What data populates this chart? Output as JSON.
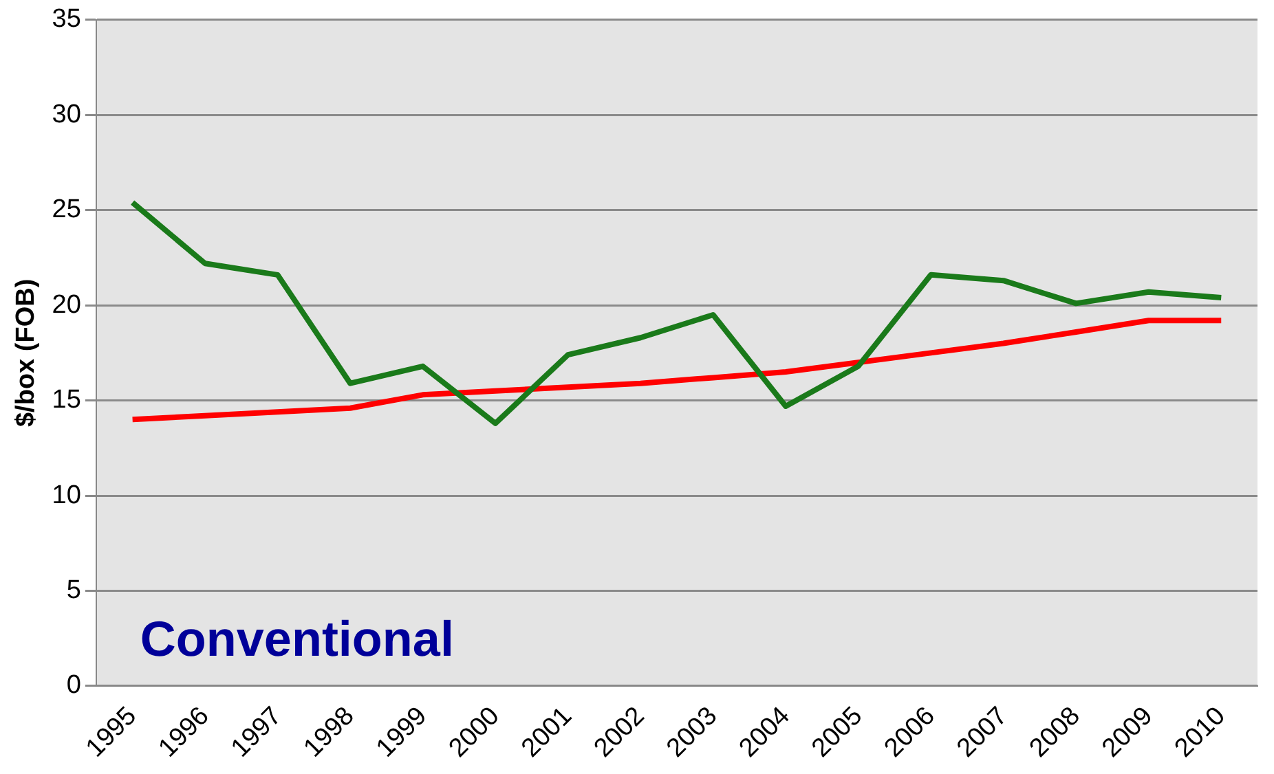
{
  "chart_data": {
    "type": "line",
    "ylabel": "$/box (FOB)",
    "categories": [
      "1995",
      "1996",
      "1997",
      "1998",
      "1999",
      "2000",
      "2001",
      "2002",
      "2003",
      "2004",
      "2005",
      "2006",
      "2007",
      "2008",
      "2009",
      "2010"
    ],
    "series": [
      {
        "color": "#1a7a1a",
        "values": [
          25.4,
          22.2,
          21.6,
          15.9,
          16.8,
          13.8,
          17.4,
          18.3,
          19.5,
          14.7,
          16.8,
          21.6,
          21.3,
          20.1,
          20.7,
          20.4
        ]
      },
      {
        "color": "#ff0000",
        "values": [
          14.0,
          14.2,
          14.4,
          14.6,
          15.3,
          15.5,
          15.7,
          15.9,
          16.2,
          16.5,
          17.0,
          17.5,
          18.0,
          18.6,
          19.2,
          19.2
        ]
      }
    ],
    "ylim": [
      0,
      35
    ],
    "yticks": [
      0,
      5,
      10,
      15,
      20,
      25,
      30,
      35
    ],
    "grid": "y",
    "legend": false,
    "marker": "none",
    "line_style": "solid",
    "annotations": [
      "Conventional"
    ]
  }
}
